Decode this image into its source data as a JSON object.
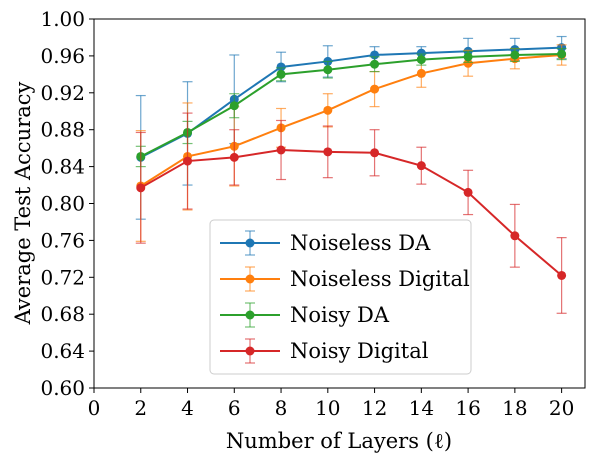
{
  "chart_data": {
    "type": "line",
    "xlabel": "Number of Layers (ℓ)",
    "ylabel": "Average Test Accuracy",
    "xlim": [
      0,
      21
    ],
    "ylim": [
      0.6,
      1.0
    ],
    "xticks": [
      0,
      2,
      4,
      6,
      8,
      10,
      12,
      14,
      16,
      18,
      20
    ],
    "yticks": [
      0.6,
      0.64,
      0.68,
      0.72,
      0.76,
      0.8,
      0.84,
      0.88,
      0.92,
      0.96,
      1.0
    ],
    "xtick_labels": [
      "0",
      "2",
      "4",
      "6",
      "8",
      "10",
      "12",
      "14",
      "16",
      "18",
      "20"
    ],
    "ytick_labels": [
      "0.60",
      "0.64",
      "0.68",
      "0.72",
      "0.76",
      "0.80",
      "0.84",
      "0.88",
      "0.92",
      "0.96",
      "1.00"
    ],
    "legend_position": "lower-center",
    "grid": false,
    "series": [
      {
        "name": "Noiseless DA",
        "color": "#1f77b4",
        "x": [
          2,
          4,
          6,
          8,
          10,
          12,
          14,
          16,
          18,
          20
        ],
        "y": [
          0.85,
          0.876,
          0.913,
          0.948,
          0.954,
          0.961,
          0.963,
          0.965,
          0.967,
          0.969
        ],
        "err": [
          0.067,
          0.056,
          0.048,
          0.016,
          0.017,
          0.009,
          0.007,
          0.014,
          0.012,
          0.012
        ]
      },
      {
        "name": "Noiseless Digital",
        "color": "#ff7f0e",
        "x": [
          2,
          4,
          6,
          8,
          10,
          12,
          14,
          16,
          18,
          20
        ],
        "y": [
          0.819,
          0.851,
          0.862,
          0.882,
          0.901,
          0.924,
          0.941,
          0.952,
          0.957,
          0.961
        ],
        "err": [
          0.06,
          0.058,
          0.043,
          0.021,
          0.018,
          0.019,
          0.015,
          0.014,
          0.011,
          0.011
        ]
      },
      {
        "name": "Noisy DA",
        "color": "#2ca02c",
        "x": [
          2,
          4,
          6,
          8,
          10,
          12,
          14,
          16,
          18,
          20
        ],
        "y": [
          0.851,
          0.877,
          0.906,
          0.94,
          0.945,
          0.951,
          0.956,
          0.959,
          0.961,
          0.962
        ],
        "err": [
          0.011,
          0.012,
          0.013,
          0.007,
          0.009,
          0.008,
          0.006,
          0.006,
          0.007,
          0.006
        ]
      },
      {
        "name": "Noisy Digital",
        "color": "#d62728",
        "x": [
          2,
          4,
          6,
          8,
          10,
          12,
          14,
          16,
          18,
          20
        ],
        "y": [
          0.817,
          0.846,
          0.85,
          0.858,
          0.856,
          0.855,
          0.841,
          0.812,
          0.765,
          0.722
        ],
        "err": [
          0.06,
          0.052,
          0.03,
          0.032,
          0.028,
          0.025,
          0.02,
          0.024,
          0.034,
          0.041
        ]
      }
    ]
  }
}
